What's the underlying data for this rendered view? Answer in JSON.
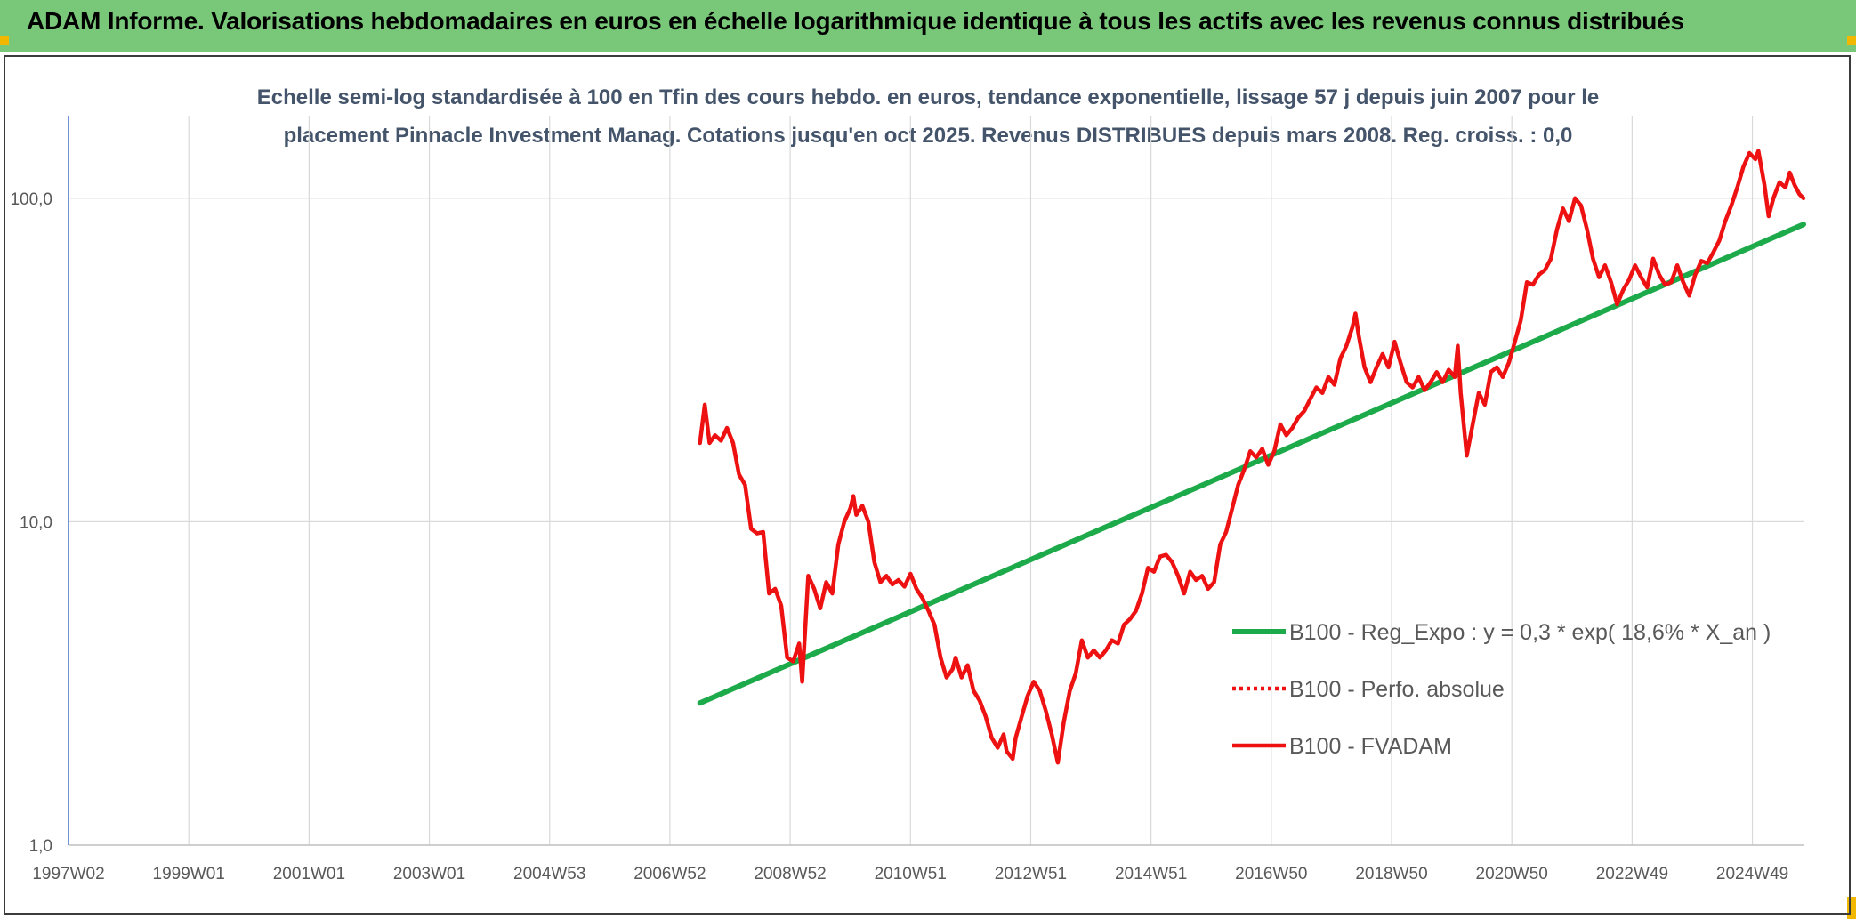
{
  "header": {
    "title": "ADAM Informe. Valorisations hebdomadaires en euros en échelle logarithmique identique à tous les actifs avec les revenus connus distribués"
  },
  "colors": {
    "header_bg": "#79c879",
    "trend": "#1daa4a",
    "series": "#ee1111",
    "grid": "#d9d9d9",
    "axis": "#4472c4"
  },
  "chart_data": {
    "type": "line",
    "title_lines": [
      "Echelle semi-log standardisée à 100 en Tfin des cours hebdo. en euros, tendance exponentielle, lissage 57 j depuis juin 2007 pour le",
      "placement Pinnacle Investment Manag. Cotations jusqu'en oct 2025. Revenus DISTRIBUES depuis mars 2008. Reg. croiss. : 0,0"
    ],
    "y_scale": "log",
    "ylim": [
      1,
      180
    ],
    "y_ticks": [
      {
        "value": 1,
        "label": "1,0"
      },
      {
        "value": 10,
        "label": "10,0"
      },
      {
        "value": 100,
        "label": "100,0"
      }
    ],
    "xlim": [
      1997.0,
      2025.85
    ],
    "x_ticks": [
      {
        "value": 1997.0,
        "label": "1997W02"
      },
      {
        "value": 1999.0,
        "label": "1999W01"
      },
      {
        "value": 2001.0,
        "label": "2001W01"
      },
      {
        "value": 2003.0,
        "label": "2003W01"
      },
      {
        "value": 2005.0,
        "label": "2004W53"
      },
      {
        "value": 2007.0,
        "label": "2006W52"
      },
      {
        "value": 2009.0,
        "label": "2008W52"
      },
      {
        "value": 2011.0,
        "label": "2010W51"
      },
      {
        "value": 2013.0,
        "label": "2012W51"
      },
      {
        "value": 2015.0,
        "label": "2014W51"
      },
      {
        "value": 2017.0,
        "label": "2016W50"
      },
      {
        "value": 2019.0,
        "label": "2018W50"
      },
      {
        "value": 2021.0,
        "label": "2020W50"
      },
      {
        "value": 2023.0,
        "label": "2022W49"
      },
      {
        "value": 2025.0,
        "label": "2024W49"
      }
    ],
    "grid": true,
    "legend_position": "right",
    "series": [
      {
        "name": "B100 - Reg_Expo : y = 0,3 * exp( 18,6% *  X_an )",
        "style": "solid",
        "color": "#1daa4a",
        "points": [
          [
            2007.5,
            2.75
          ],
          [
            2025.85,
            83
          ]
        ]
      },
      {
        "name": "B100 - Perfo. absolue",
        "style": "dotted",
        "color": "#ee1111",
        "points": []
      },
      {
        "name": "B100 - FVADAM",
        "style": "solid",
        "color": "#ee1111",
        "points": [
          [
            2007.5,
            17.5
          ],
          [
            2007.58,
            23
          ],
          [
            2007.66,
            17.5
          ],
          [
            2007.75,
            18.5
          ],
          [
            2007.85,
            17.8
          ],
          [
            2007.95,
            19.5
          ],
          [
            2008.05,
            17.5
          ],
          [
            2008.15,
            14
          ],
          [
            2008.25,
            13
          ],
          [
            2008.35,
            9.5
          ],
          [
            2008.45,
            9.2
          ],
          [
            2008.55,
            9.3
          ],
          [
            2008.65,
            6
          ],
          [
            2008.75,
            6.2
          ],
          [
            2008.85,
            5.5
          ],
          [
            2008.95,
            3.8
          ],
          [
            2009.05,
            3.7
          ],
          [
            2009.15,
            4.2
          ],
          [
            2009.2,
            3.2
          ],
          [
            2009.3,
            6.8
          ],
          [
            2009.4,
            6.2
          ],
          [
            2009.5,
            5.4
          ],
          [
            2009.6,
            6.5
          ],
          [
            2009.7,
            6
          ],
          [
            2009.8,
            8.5
          ],
          [
            2009.9,
            10
          ],
          [
            2010.0,
            11
          ],
          [
            2010.05,
            12
          ],
          [
            2010.1,
            10.5
          ],
          [
            2010.2,
            11.2
          ],
          [
            2010.3,
            10
          ],
          [
            2010.4,
            7.5
          ],
          [
            2010.5,
            6.5
          ],
          [
            2010.6,
            6.8
          ],
          [
            2010.7,
            6.4
          ],
          [
            2010.8,
            6.6
          ],
          [
            2010.9,
            6.3
          ],
          [
            2011.0,
            6.9
          ],
          [
            2011.1,
            6.2
          ],
          [
            2011.2,
            5.8
          ],
          [
            2011.3,
            5.3
          ],
          [
            2011.4,
            4.8
          ],
          [
            2011.5,
            3.8
          ],
          [
            2011.6,
            3.3
          ],
          [
            2011.7,
            3.5
          ],
          [
            2011.75,
            3.8
          ],
          [
            2011.85,
            3.3
          ],
          [
            2011.95,
            3.6
          ],
          [
            2012.05,
            3.0
          ],
          [
            2012.15,
            2.8
          ],
          [
            2012.25,
            2.5
          ],
          [
            2012.35,
            2.15
          ],
          [
            2012.45,
            2.0
          ],
          [
            2012.55,
            2.2
          ],
          [
            2012.6,
            1.95
          ],
          [
            2012.7,
            1.85
          ],
          [
            2012.75,
            2.15
          ],
          [
            2012.85,
            2.5
          ],
          [
            2012.95,
            2.9
          ],
          [
            2013.05,
            3.2
          ],
          [
            2013.15,
            3.0
          ],
          [
            2013.25,
            2.6
          ],
          [
            2013.35,
            2.2
          ],
          [
            2013.45,
            1.8
          ],
          [
            2013.55,
            2.4
          ],
          [
            2013.65,
            3.0
          ],
          [
            2013.75,
            3.4
          ],
          [
            2013.85,
            4.3
          ],
          [
            2013.95,
            3.8
          ],
          [
            2014.05,
            4.0
          ],
          [
            2014.15,
            3.8
          ],
          [
            2014.25,
            4.0
          ],
          [
            2014.35,
            4.3
          ],
          [
            2014.45,
            4.2
          ],
          [
            2014.55,
            4.8
          ],
          [
            2014.65,
            5.0
          ],
          [
            2014.75,
            5.3
          ],
          [
            2014.85,
            6.0
          ],
          [
            2014.95,
            7.2
          ],
          [
            2015.05,
            7.0
          ],
          [
            2015.15,
            7.8
          ],
          [
            2015.25,
            7.9
          ],
          [
            2015.35,
            7.5
          ],
          [
            2015.45,
            6.8
          ],
          [
            2015.55,
            6.0
          ],
          [
            2015.65,
            7.0
          ],
          [
            2015.75,
            6.6
          ],
          [
            2015.85,
            6.8
          ],
          [
            2015.95,
            6.2
          ],
          [
            2016.05,
            6.5
          ],
          [
            2016.15,
            8.5
          ],
          [
            2016.25,
            9.3
          ],
          [
            2016.35,
            11
          ],
          [
            2016.45,
            13
          ],
          [
            2016.55,
            14.5
          ],
          [
            2016.65,
            16.5
          ],
          [
            2016.75,
            15.8
          ],
          [
            2016.85,
            16.8
          ],
          [
            2016.95,
            15
          ],
          [
            2017.05,
            16.5
          ],
          [
            2017.15,
            20
          ],
          [
            2017.25,
            18.5
          ],
          [
            2017.35,
            19.5
          ],
          [
            2017.45,
            21
          ],
          [
            2017.55,
            22
          ],
          [
            2017.65,
            24
          ],
          [
            2017.75,
            26
          ],
          [
            2017.85,
            25
          ],
          [
            2017.95,
            28
          ],
          [
            2018.05,
            26.5
          ],
          [
            2018.15,
            32
          ],
          [
            2018.25,
            35
          ],
          [
            2018.35,
            40
          ],
          [
            2018.4,
            44
          ],
          [
            2018.45,
            38
          ],
          [
            2018.55,
            30
          ],
          [
            2018.65,
            27
          ],
          [
            2018.75,
            30
          ],
          [
            2018.85,
            33
          ],
          [
            2018.95,
            30
          ],
          [
            2019.05,
            36
          ],
          [
            2019.15,
            31
          ],
          [
            2019.25,
            27
          ],
          [
            2019.35,
            26
          ],
          [
            2019.45,
            28
          ],
          [
            2019.55,
            25.5
          ],
          [
            2019.65,
            27
          ],
          [
            2019.75,
            29
          ],
          [
            2019.85,
            27
          ],
          [
            2019.95,
            29.5
          ],
          [
            2020.05,
            28
          ],
          [
            2020.1,
            35
          ],
          [
            2020.15,
            25
          ],
          [
            2020.25,
            16
          ],
          [
            2020.35,
            20
          ],
          [
            2020.45,
            25
          ],
          [
            2020.55,
            23
          ],
          [
            2020.65,
            29
          ],
          [
            2020.75,
            30
          ],
          [
            2020.85,
            28
          ],
          [
            2020.95,
            31
          ],
          [
            2021.05,
            36
          ],
          [
            2021.15,
            42
          ],
          [
            2021.25,
            55
          ],
          [
            2021.35,
            54
          ],
          [
            2021.45,
            58
          ],
          [
            2021.55,
            60
          ],
          [
            2021.65,
            65
          ],
          [
            2021.75,
            80
          ],
          [
            2021.85,
            93
          ],
          [
            2021.95,
            85
          ],
          [
            2022.05,
            100
          ],
          [
            2022.15,
            95
          ],
          [
            2022.25,
            80
          ],
          [
            2022.35,
            65
          ],
          [
            2022.45,
            57
          ],
          [
            2022.55,
            62
          ],
          [
            2022.65,
            55
          ],
          [
            2022.75,
            47
          ],
          [
            2022.85,
            52
          ],
          [
            2022.95,
            56
          ],
          [
            2023.05,
            62
          ],
          [
            2023.15,
            57
          ],
          [
            2023.25,
            53
          ],
          [
            2023.35,
            65
          ],
          [
            2023.45,
            58
          ],
          [
            2023.55,
            54
          ],
          [
            2023.65,
            55
          ],
          [
            2023.75,
            62
          ],
          [
            2023.85,
            55
          ],
          [
            2023.95,
            50
          ],
          [
            2024.05,
            58
          ],
          [
            2024.15,
            64
          ],
          [
            2024.25,
            63
          ],
          [
            2024.35,
            68
          ],
          [
            2024.45,
            74
          ],
          [
            2024.55,
            85
          ],
          [
            2024.65,
            95
          ],
          [
            2024.75,
            108
          ],
          [
            2024.85,
            125
          ],
          [
            2024.95,
            138
          ],
          [
            2025.05,
            132
          ],
          [
            2025.1,
            140
          ],
          [
            2025.2,
            110
          ],
          [
            2025.27,
            88
          ],
          [
            2025.35,
            100
          ],
          [
            2025.45,
            112
          ],
          [
            2025.55,
            108
          ],
          [
            2025.62,
            120
          ],
          [
            2025.7,
            110
          ],
          [
            2025.78,
            103
          ],
          [
            2025.85,
            100
          ]
        ]
      }
    ]
  }
}
